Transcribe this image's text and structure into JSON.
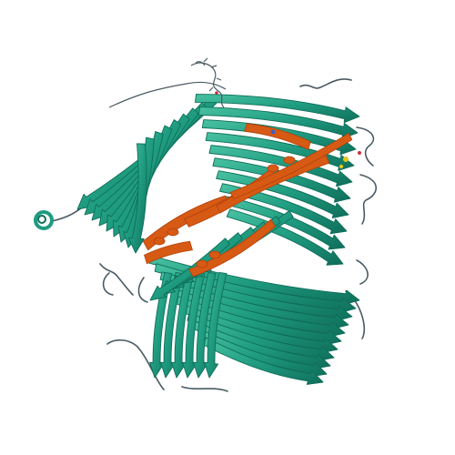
{
  "image": {
    "background": "#ffffff",
    "depiction": "protein-ribbon-structure",
    "colors": {
      "strand": "#1f9c80",
      "strand_light": "#49c2a2",
      "strand_edge": "#0f6e5a",
      "coil": "#4a5a63",
      "ligand": "#d65a14",
      "ligand_dark": "#b4400a",
      "helix_small": "#1f9c80",
      "accent_yellow": "#e3c61a",
      "accent_red": "#c8323a",
      "accent_blue": "#3a62c8"
    }
  }
}
